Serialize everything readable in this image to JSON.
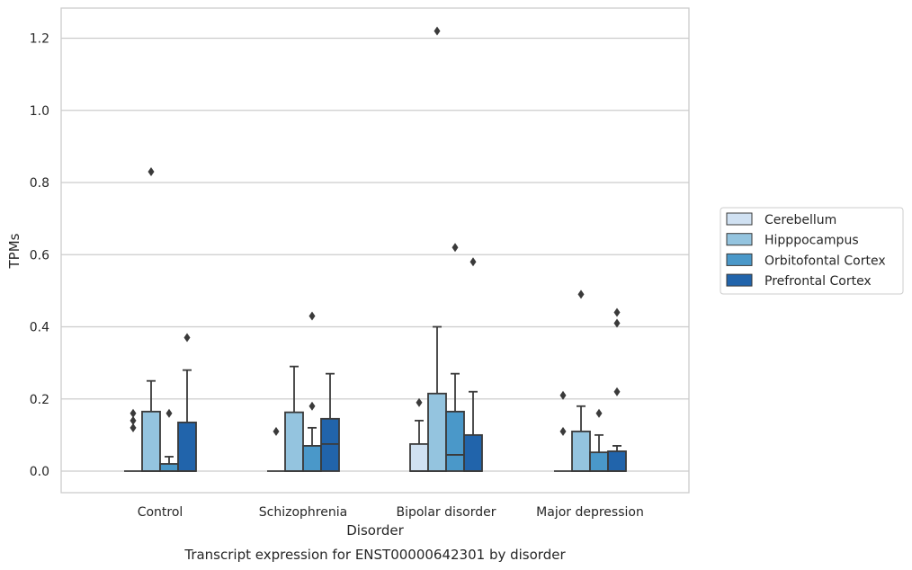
{
  "chart_data": {
    "type": "box",
    "title": "",
    "caption": "Transcript expression for ENST00000642301 by disorder",
    "xlabel": "Disorder",
    "ylabel": "TPMs",
    "ylim": [
      -0.06,
      1.285
    ],
    "yticks": [
      0.0,
      0.2,
      0.4,
      0.6,
      0.8,
      1.0,
      1.2
    ],
    "ytick_labels": [
      "0.0",
      "0.2",
      "0.4",
      "0.6",
      "0.8",
      "1.0",
      "1.2"
    ],
    "grid": "horizontal",
    "legend_position": "right",
    "categories": [
      "Control",
      "Schizophrenia",
      "Bipolar disorder",
      "Major depression"
    ],
    "series": [
      {
        "name": "Cerebellum",
        "color": "#d0e1f2",
        "boxes": [
          {
            "q1": 0.0,
            "median": 0.0,
            "q3": 0.0,
            "whisker_low": 0.0,
            "whisker_high": 0.0,
            "outliers": [
              0.12,
              0.14,
              0.16
            ]
          },
          {
            "q1": 0.0,
            "median": 0.0,
            "q3": 0.0,
            "whisker_low": 0.0,
            "whisker_high": 0.0,
            "outliers": [
              0.11
            ]
          },
          {
            "q1": 0.0,
            "median": 0.0,
            "q3": 0.075,
            "whisker_low": 0.0,
            "whisker_high": 0.14,
            "outliers": [
              0.19
            ]
          },
          {
            "q1": 0.0,
            "median": 0.0,
            "q3": 0.0,
            "whisker_low": 0.0,
            "whisker_high": 0.0,
            "outliers": [
              0.11,
              0.21
            ]
          }
        ]
      },
      {
        "name": "Hipppocampus",
        "color": "#94c4df",
        "boxes": [
          {
            "q1": 0.0,
            "median": 0.0,
            "q3": 0.165,
            "whisker_low": 0.0,
            "whisker_high": 0.25,
            "outliers": [
              0.83
            ]
          },
          {
            "q1": 0.0,
            "median": 0.0,
            "q3": 0.163,
            "whisker_low": 0.0,
            "whisker_high": 0.29,
            "outliers": []
          },
          {
            "q1": 0.0,
            "median": 0.0,
            "q3": 0.215,
            "whisker_low": 0.0,
            "whisker_high": 0.4,
            "outliers": [
              1.22
            ]
          },
          {
            "q1": 0.0,
            "median": 0.0,
            "q3": 0.11,
            "whisker_low": 0.0,
            "whisker_high": 0.18,
            "outliers": [
              0.49
            ]
          }
        ]
      },
      {
        "name": "Orbitofontal Cortex",
        "color": "#4a98c9",
        "boxes": [
          {
            "q1": 0.0,
            "median": 0.0,
            "q3": 0.02,
            "whisker_low": 0.0,
            "whisker_high": 0.04,
            "outliers": [
              0.16
            ]
          },
          {
            "q1": 0.0,
            "median": 0.0,
            "q3": 0.07,
            "whisker_low": 0.0,
            "whisker_high": 0.12,
            "outliers": [
              0.18,
              0.43
            ]
          },
          {
            "q1": 0.0,
            "median": 0.045,
            "q3": 0.165,
            "whisker_low": 0.0,
            "whisker_high": 0.27,
            "outliers": [
              0.62
            ]
          },
          {
            "q1": 0.0,
            "median": 0.0,
            "q3": 0.052,
            "whisker_low": 0.0,
            "whisker_high": 0.1,
            "outliers": [
              0.16
            ]
          }
        ]
      },
      {
        "name": "Prefrontal Cortex",
        "color": "#2164ab",
        "boxes": [
          {
            "q1": 0.0,
            "median": 0.0,
            "q3": 0.135,
            "whisker_low": 0.0,
            "whisker_high": 0.28,
            "outliers": [
              0.37
            ]
          },
          {
            "q1": 0.0,
            "median": 0.075,
            "q3": 0.145,
            "whisker_low": 0.0,
            "whisker_high": 0.27,
            "outliers": []
          },
          {
            "q1": 0.0,
            "median": 0.0,
            "q3": 0.1,
            "whisker_low": 0.0,
            "whisker_high": 0.22,
            "outliers": [
              0.58
            ]
          },
          {
            "q1": 0.0,
            "median": 0.0,
            "q3": 0.055,
            "whisker_low": 0.0,
            "whisker_high": 0.07,
            "outliers": [
              0.22,
              0.41,
              0.44
            ]
          }
        ]
      }
    ]
  }
}
